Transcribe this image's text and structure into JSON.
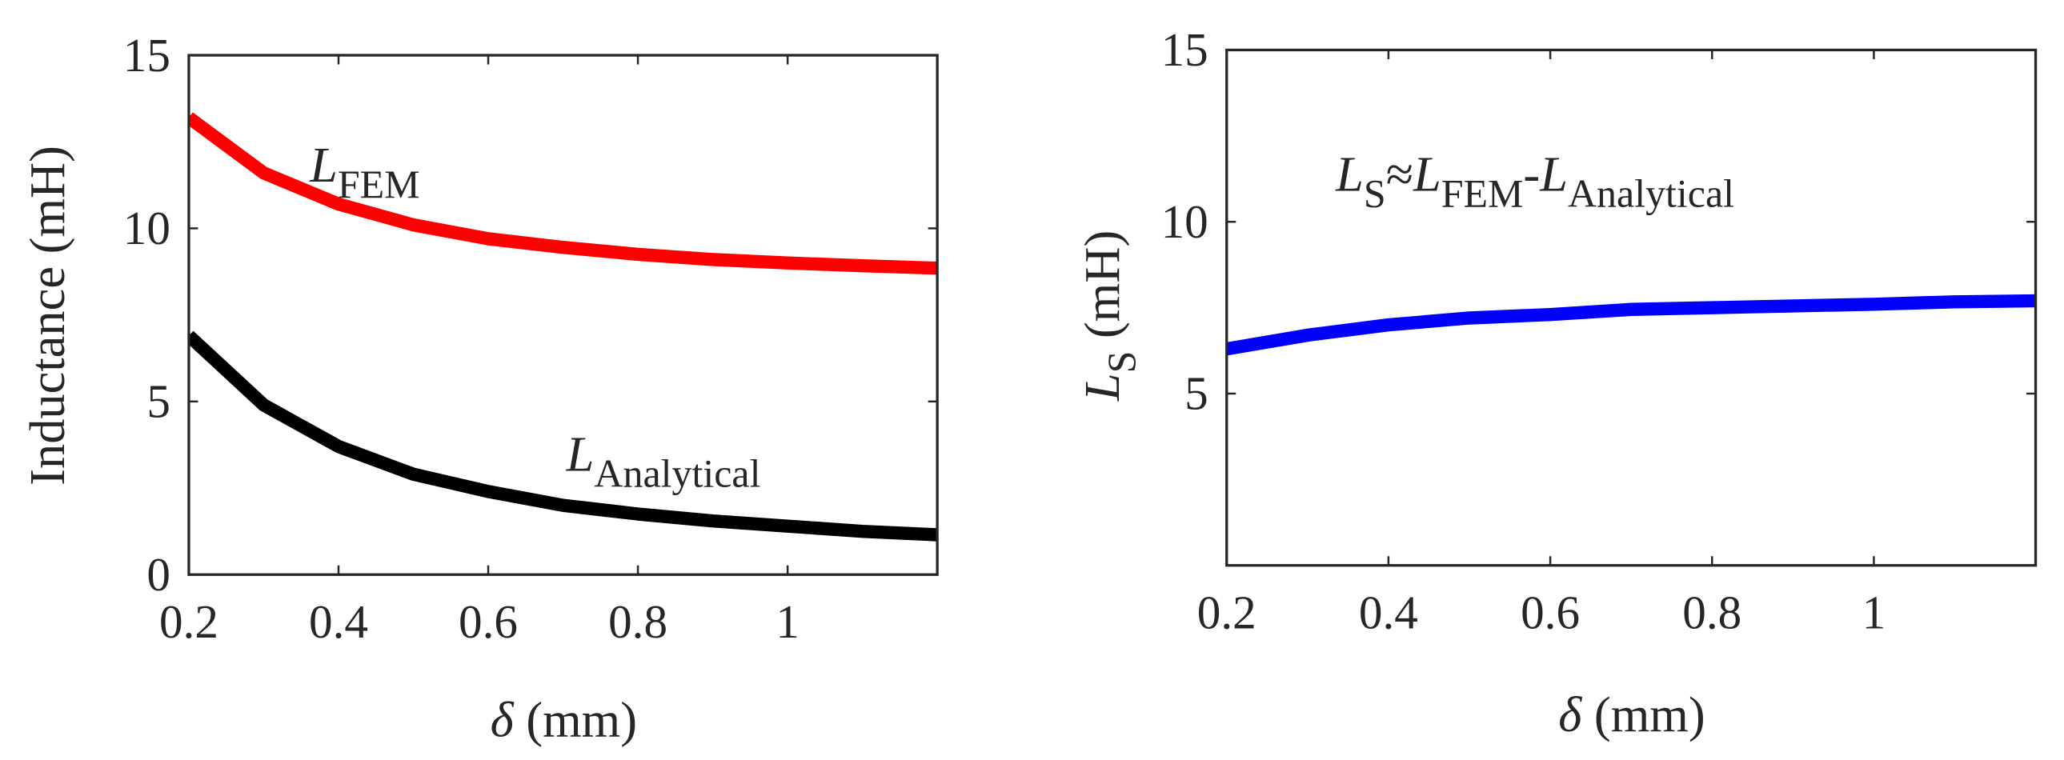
{
  "chart_data": [
    {
      "type": "line",
      "xlabel": [
        {
          "text": "δ",
          "style": "italic"
        },
        {
          "text": " (mm)"
        }
      ],
      "ylabel": [
        {
          "text": "Inductance (mH)"
        }
      ],
      "xlim": [
        0.2,
        1.2
      ],
      "ylim": [
        0,
        15
      ],
      "xticks": [
        0.2,
        0.4,
        0.6,
        0.8,
        1
      ],
      "yticks": [
        0,
        5,
        10,
        15
      ],
      "x": [
        0.2,
        0.3,
        0.4,
        0.5,
        0.6,
        0.7,
        0.8,
        0.9,
        1.0,
        1.1,
        1.2
      ],
      "series": [
        {
          "name": "L_FEM",
          "color": "#ff0000",
          "values": [
            13.2,
            11.6,
            10.7,
            10.1,
            9.7,
            9.45,
            9.25,
            9.1,
            9.0,
            8.92,
            8.85
          ]
        },
        {
          "name": "L_Analytical",
          "color": "#000000",
          "values": [
            6.9,
            4.9,
            3.7,
            2.9,
            2.4,
            2.0,
            1.75,
            1.55,
            1.4,
            1.25,
            1.15
          ]
        }
      ],
      "annotations": [
        {
          "parts": [
            {
              "text": "L",
              "style": "italic"
            },
            {
              "text": "FEM",
              "style": "sub"
            }
          ]
        },
        {
          "parts": [
            {
              "text": "L",
              "style": "italic"
            },
            {
              "text": "Analytical",
              "style": "sub"
            }
          ]
        }
      ]
    },
    {
      "type": "line",
      "xlabel": [
        {
          "text": "δ",
          "style": "italic"
        },
        {
          "text": "  (mm)"
        }
      ],
      "ylabel": [
        {
          "text": "L",
          "style": "italic"
        },
        {
          "text": "S",
          "style": "sub"
        },
        {
          "text": "  (mH)"
        }
      ],
      "xlim": [
        0.2,
        1.2
      ],
      "ylim": [
        0,
        15
      ],
      "xticks": [
        0.2,
        0.4,
        0.6,
        0.8,
        1
      ],
      "yticks": [
        5,
        10,
        15
      ],
      "x": [
        0.2,
        0.3,
        0.4,
        0.5,
        0.6,
        0.7,
        0.8,
        0.9,
        1.0,
        1.1,
        1.2
      ],
      "series": [
        {
          "name": "L_S",
          "color": "#0000ff",
          "values": [
            6.3,
            6.7,
            7.0,
            7.2,
            7.3,
            7.45,
            7.5,
            7.55,
            7.6,
            7.67,
            7.7
          ]
        }
      ],
      "annotations": [
        {
          "parts": [
            {
              "text": "L",
              "style": "italic"
            },
            {
              "text": "S",
              "style": "sub"
            },
            {
              "text": "≈"
            },
            {
              "text": "L",
              "style": "italic"
            },
            {
              "text": "FEM",
              "style": "sub"
            },
            {
              "text": "-"
            },
            {
              "text": "L",
              "style": "italic"
            },
            {
              "text": "Analytical",
              "style": "sub"
            }
          ]
        }
      ]
    }
  ]
}
